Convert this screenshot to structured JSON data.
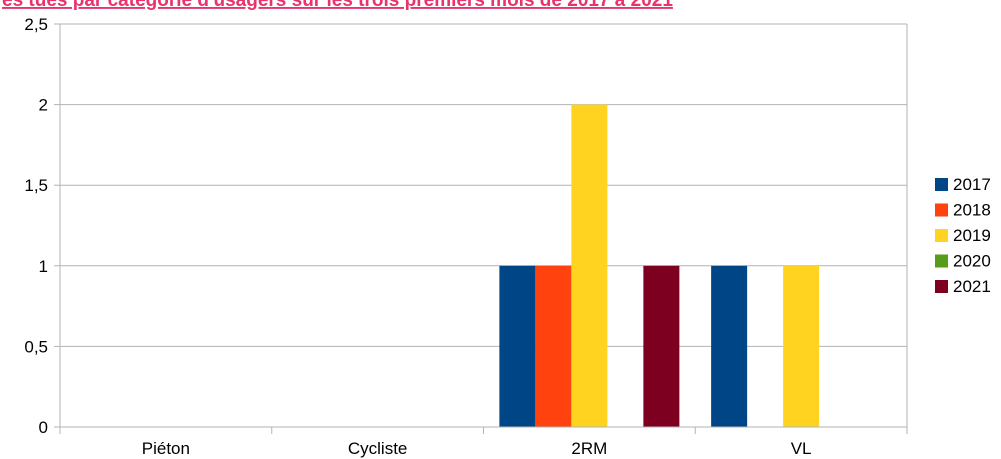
{
  "chart_data": {
    "type": "bar",
    "title": "es tués par catégorie d'usagers sur les trois premiers mois de 2017 à 2021",
    "title_color": "#e8336d",
    "categories": [
      "Piéton",
      "Cycliste",
      "2RM",
      "VL"
    ],
    "series": [
      {
        "name": "2017",
        "color": "#004586",
        "values": [
          0,
          0,
          1,
          1
        ]
      },
      {
        "name": "2018",
        "color": "#ff420e",
        "values": [
          0,
          0,
          1,
          0
        ]
      },
      {
        "name": "2019",
        "color": "#ffd320",
        "values": [
          0,
          0,
          2,
          1
        ]
      },
      {
        "name": "2020",
        "color": "#579d1c",
        "values": [
          0,
          0,
          0,
          0
        ]
      },
      {
        "name": "2021",
        "color": "#7e0021",
        "values": [
          0,
          0,
          1,
          0
        ]
      }
    ],
    "ylim": [
      0,
      2.5
    ],
    "yticks": [
      "0",
      "0,5",
      "1",
      "1,5",
      "2",
      "2,5"
    ],
    "xlabel": "",
    "ylabel": "",
    "grid": true,
    "legend_position": "right"
  }
}
